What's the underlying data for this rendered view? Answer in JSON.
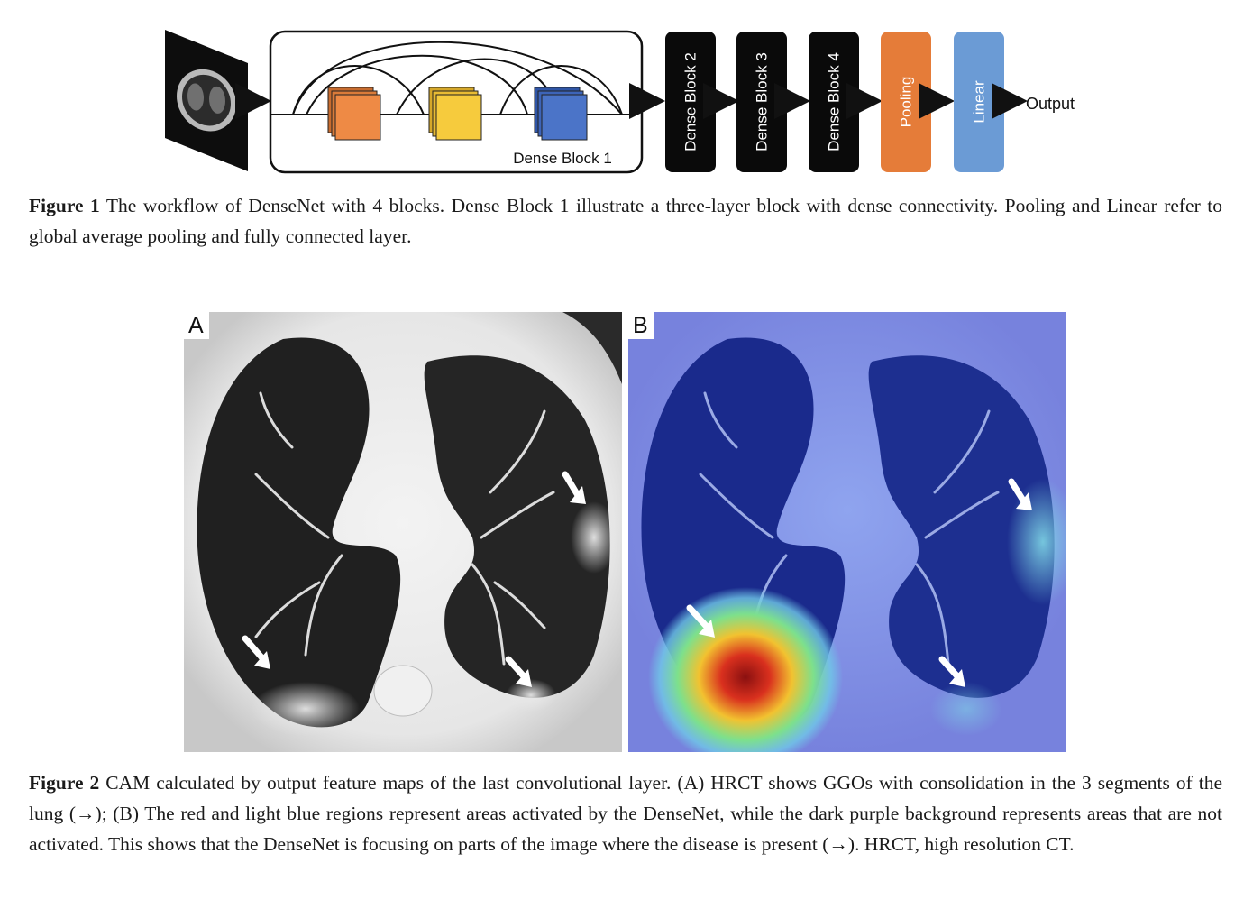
{
  "figure1": {
    "inner_block_label": "Dense Block 1",
    "blocks": [
      "Dense Block 2",
      "Dense Block 3",
      "Dense Block 4",
      "Pooling",
      "Linear"
    ],
    "output_label": "Output",
    "colors": {
      "layer1": "#ee8a45",
      "layer2": "#f6cb3d",
      "layer3": "#4b74c8",
      "dense_block": "#0a0a0a",
      "pooling": "#e57c39",
      "linear": "#6b9bd5"
    },
    "caption_label": "Figure 1",
    "caption_text": "The workflow of DenseNet with 4 blocks. Dense Block 1 illustrate a three-layer block with dense connectivity. Pooling and Linear refer to global average pooling and fully connected layer."
  },
  "figure2": {
    "panel_a_letter": "A",
    "panel_b_letter": "B",
    "caption_label": "Figure 2",
    "caption_text": "CAM calculated by output feature maps of the last convolutional layer. (A) HRCT shows GGOs with consolidation in the 3 segments of the lung (→); (B) The red and light blue regions represent areas activated by the DenseNet, while the dark purple background represents areas that are not activated. This shows that the DenseNet is focusing on parts of the image where the disease is present (→). HRCT, high resolution CT."
  }
}
